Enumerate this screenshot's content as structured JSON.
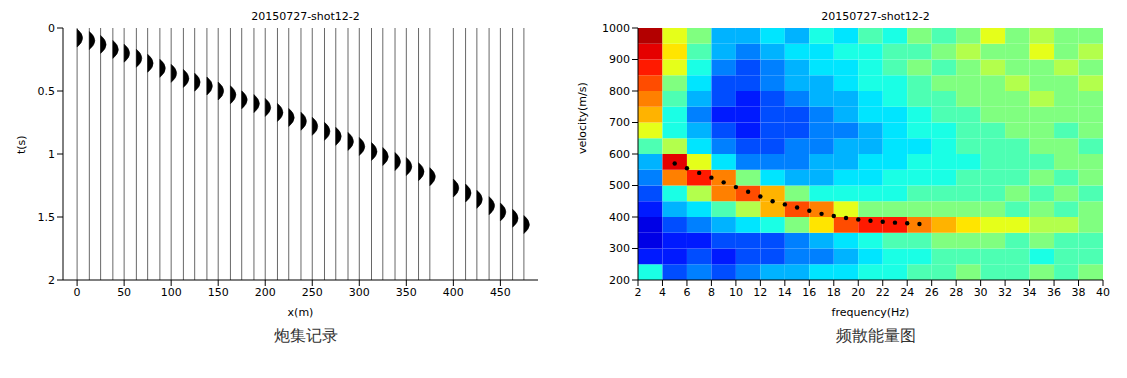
{
  "chart_data": [
    {
      "type": "seismic_gather",
      "title": "20150727-shot12-2",
      "caption": "炮集记录",
      "xlabel": "x(m)",
      "ylabel": "t(s)",
      "xlim": [
        -15,
        490
      ],
      "ylim": [
        0,
        2
      ],
      "xticks": [
        0,
        50,
        100,
        150,
        200,
        250,
        300,
        350,
        400,
        450
      ],
      "yticks": [
        0,
        0.5,
        1,
        1.5,
        2
      ],
      "x": [
        0,
        13,
        25,
        38,
        50,
        63,
        75,
        88,
        100,
        113,
        125,
        138,
        150,
        163,
        175,
        188,
        200,
        213,
        225,
        238,
        250,
        263,
        275,
        288,
        300,
        313,
        325,
        338,
        350,
        363,
        375,
        400,
        413,
        425,
        438,
        450,
        463,
        475
      ],
      "values": [
        0.08,
        0.1,
        0.13,
        0.17,
        0.2,
        0.24,
        0.28,
        0.32,
        0.36,
        0.4,
        0.43,
        0.46,
        0.5,
        0.53,
        0.57,
        0.6,
        0.63,
        0.67,
        0.71,
        0.74,
        0.78,
        0.82,
        0.86,
        0.9,
        0.94,
        0.98,
        1.02,
        1.06,
        1.1,
        1.14,
        1.18,
        1.27,
        1.31,
        1.36,
        1.41,
        1.46,
        1.51,
        1.56
      ],
      "color": "#000000"
    },
    {
      "type": "heatmap",
      "title": "20150727-shot12-2",
      "caption": "频散能量图",
      "xlabel": "frequency(Hz)",
      "ylabel": "velocity(m/s)",
      "xlim": [
        2,
        40
      ],
      "ylim": [
        200,
        1000
      ],
      "xticks": [
        2,
        4,
        6,
        8,
        10,
        12,
        14,
        16,
        18,
        20,
        22,
        24,
        26,
        28,
        30,
        32,
        34,
        36,
        38,
        40
      ],
      "yticks": [
        200,
        300,
        400,
        500,
        600,
        700,
        800,
        900,
        1000
      ],
      "cells": {
        "x": [
          3,
          5,
          7,
          9,
          11,
          13,
          15,
          17,
          19,
          21,
          23,
          25,
          27,
          29,
          31,
          33,
          35,
          37,
          39
        ],
        "y": [
          225,
          275,
          325,
          375,
          425,
          475,
          525,
          575,
          625,
          675,
          725,
          775,
          825,
          875,
          925,
          975
        ],
        "values": [
          [
            0.4,
            0.2,
            0.25,
            0.2,
            0.25,
            0.3,
            0.3,
            0.35,
            0.35,
            0.4,
            0.4,
            0.45,
            0.45,
            0.5,
            0.45,
            0.45,
            0.5,
            0.45,
            0.5
          ],
          [
            0.15,
            0.15,
            0.2,
            0.15,
            0.2,
            0.2,
            0.25,
            0.25,
            0.3,
            0.35,
            0.4,
            0.4,
            0.45,
            0.45,
            0.45,
            0.45,
            0.4,
            0.45,
            0.45
          ],
          [
            0.1,
            0.15,
            0.15,
            0.2,
            0.2,
            0.2,
            0.25,
            0.3,
            0.35,
            0.4,
            0.45,
            0.45,
            0.5,
            0.5,
            0.5,
            0.45,
            0.5,
            0.45,
            0.45
          ],
          [
            0.1,
            0.2,
            0.25,
            0.3,
            0.35,
            0.4,
            0.5,
            0.65,
            0.8,
            0.85,
            0.85,
            0.75,
            0.7,
            0.65,
            0.6,
            0.6,
            0.55,
            0.55,
            0.5
          ],
          [
            0.15,
            0.3,
            0.35,
            0.45,
            0.55,
            0.7,
            0.8,
            0.75,
            0.6,
            0.5,
            0.5,
            0.5,
            0.5,
            0.5,
            0.5,
            0.45,
            0.5,
            0.45,
            0.5
          ],
          [
            0.2,
            0.4,
            0.55,
            0.75,
            0.8,
            0.7,
            0.5,
            0.4,
            0.4,
            0.4,
            0.4,
            0.45,
            0.45,
            0.45,
            0.45,
            0.5,
            0.45,
            0.5,
            0.45
          ],
          [
            0.25,
            0.75,
            0.85,
            0.75,
            0.5,
            0.35,
            0.3,
            0.3,
            0.35,
            0.35,
            0.4,
            0.4,
            0.4,
            0.45,
            0.45,
            0.45,
            0.5,
            0.45,
            0.5
          ],
          [
            0.3,
            0.9,
            0.6,
            0.35,
            0.25,
            0.25,
            0.25,
            0.3,
            0.3,
            0.35,
            0.35,
            0.4,
            0.4,
            0.4,
            0.45,
            0.45,
            0.45,
            0.5,
            0.5
          ],
          [
            0.45,
            0.55,
            0.35,
            0.25,
            0.2,
            0.2,
            0.25,
            0.25,
            0.3,
            0.3,
            0.35,
            0.35,
            0.4,
            0.45,
            0.45,
            0.45,
            0.5,
            0.5,
            0.45
          ],
          [
            0.6,
            0.4,
            0.3,
            0.2,
            0.15,
            0.2,
            0.2,
            0.25,
            0.25,
            0.3,
            0.35,
            0.4,
            0.4,
            0.45,
            0.45,
            0.5,
            0.5,
            0.45,
            0.5
          ],
          [
            0.7,
            0.4,
            0.25,
            0.15,
            0.15,
            0.2,
            0.2,
            0.25,
            0.3,
            0.35,
            0.35,
            0.4,
            0.45,
            0.45,
            0.5,
            0.5,
            0.5,
            0.5,
            0.5
          ],
          [
            0.75,
            0.45,
            0.3,
            0.2,
            0.15,
            0.2,
            0.25,
            0.3,
            0.3,
            0.35,
            0.4,
            0.45,
            0.45,
            0.5,
            0.5,
            0.5,
            0.55,
            0.5,
            0.5
          ],
          [
            0.8,
            0.5,
            0.35,
            0.2,
            0.2,
            0.25,
            0.3,
            0.3,
            0.35,
            0.4,
            0.4,
            0.45,
            0.5,
            0.5,
            0.5,
            0.55,
            0.5,
            0.5,
            0.55
          ],
          [
            0.85,
            0.6,
            0.4,
            0.25,
            0.2,
            0.25,
            0.3,
            0.35,
            0.35,
            0.4,
            0.45,
            0.5,
            0.45,
            0.5,
            0.55,
            0.5,
            0.5,
            0.55,
            0.5
          ],
          [
            0.9,
            0.65,
            0.45,
            0.3,
            0.25,
            0.3,
            0.35,
            0.35,
            0.4,
            0.4,
            0.45,
            0.45,
            0.5,
            0.55,
            0.5,
            0.5,
            0.6,
            0.5,
            0.55
          ],
          [
            0.95,
            0.6,
            0.5,
            0.3,
            0.3,
            0.35,
            0.3,
            0.4,
            0.35,
            0.45,
            0.4,
            0.5,
            0.45,
            0.5,
            0.6,
            0.5,
            0.55,
            0.5,
            0.5
          ]
        ],
        "value_range": [
          0,
          1
        ]
      },
      "picks": {
        "x": [
          5,
          6,
          7,
          8,
          9,
          10,
          11,
          12,
          13,
          14,
          15,
          16,
          17,
          18,
          19,
          20,
          21,
          22,
          23,
          24,
          25
        ],
        "y": [
          570,
          555,
          540,
          525,
          510,
          495,
          480,
          465,
          450,
          440,
          430,
          420,
          410,
          403,
          397,
          392,
          388,
          385,
          382,
          380,
          378
        ],
        "color": "#000000"
      }
    }
  ]
}
